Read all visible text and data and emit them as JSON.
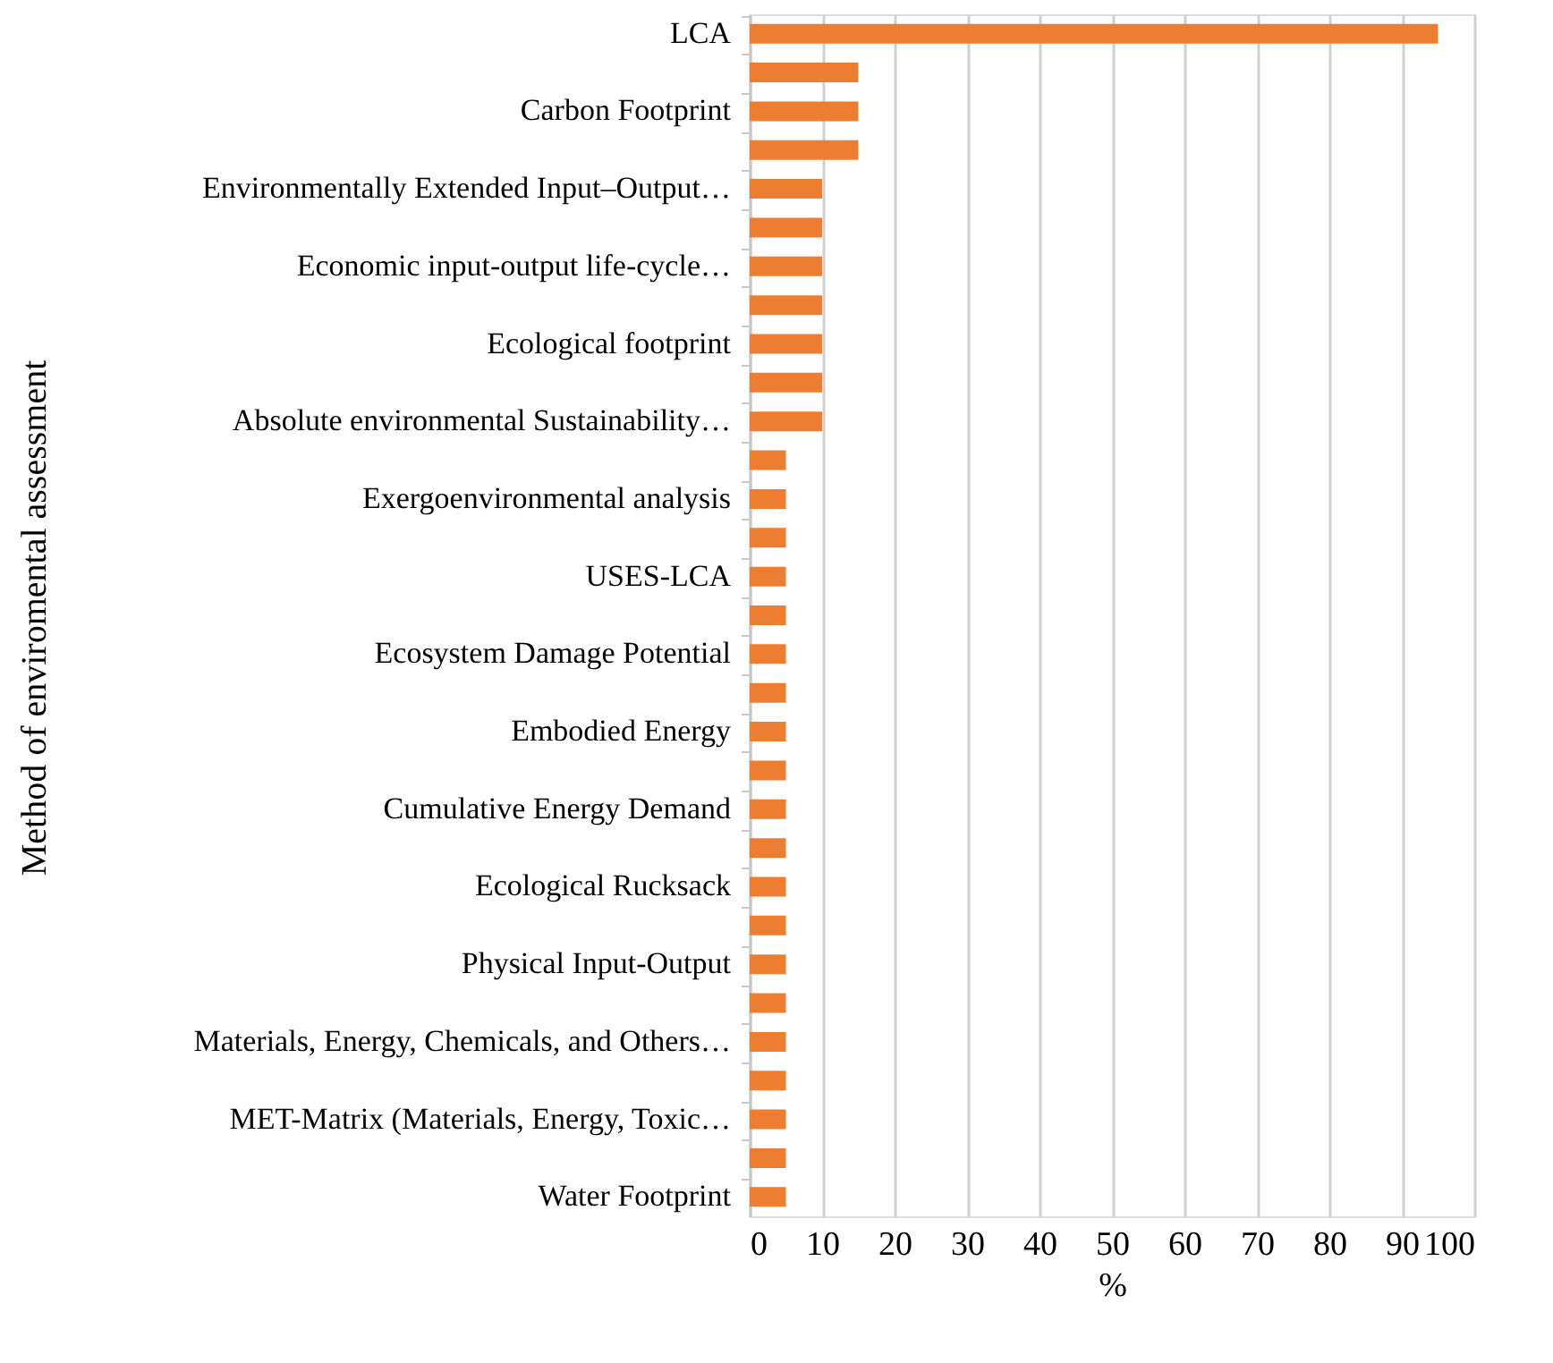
{
  "chart_data": {
    "type": "bar",
    "orientation": "horizontal",
    "xlabel": "%",
    "ylabel": "Method of enviromental assessment",
    "categories": [
      "LCA",
      null,
      "Carbon Footprint",
      null,
      "Environmentally Extended Input–Output…",
      null,
      "Economic input-output life-cycle…",
      null,
      "Ecological footprint",
      null,
      "Absolute environmental Sustainability…",
      null,
      "Exergoenvironmental analysis",
      null,
      "USES-LCA",
      null,
      "Ecosystem Damage Potential",
      null,
      "Embodied Energy",
      null,
      "Cumulative Energy Demand",
      null,
      "Ecological Rucksack",
      null,
      "Physical Input-Output",
      null,
      "Materials, Energy, Chemicals, and Others…",
      null,
      "MET-Matrix (Materials, Energy, Toxic…",
      null,
      "Water Footprint"
    ],
    "values": [
      95,
      15,
      15,
      15,
      10,
      10,
      10,
      10,
      10,
      10,
      10,
      5,
      5,
      5,
      5,
      5,
      5,
      5,
      5,
      5,
      5,
      5,
      5,
      5,
      5,
      5,
      5,
      5,
      5,
      5,
      5
    ],
    "color": "#ed7d31",
    "xlim": [
      0,
      100
    ],
    "xticks": [
      0,
      10,
      20,
      30,
      40,
      50,
      60,
      70,
      80,
      90,
      100
    ],
    "grid": "x"
  }
}
